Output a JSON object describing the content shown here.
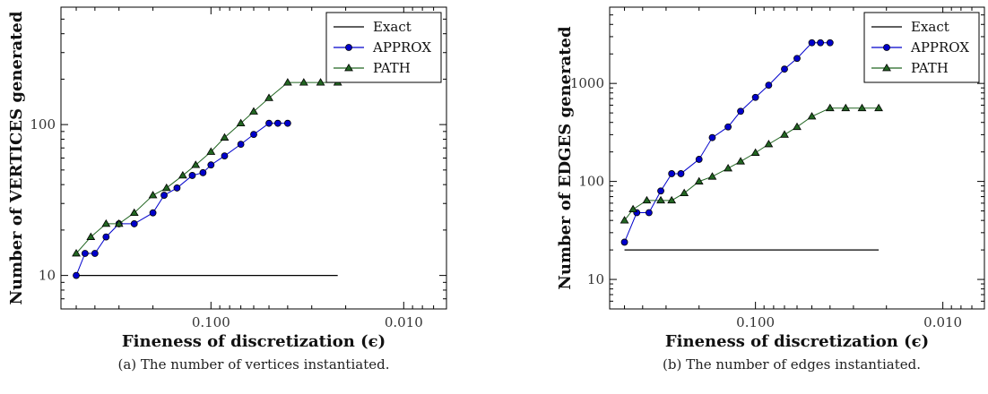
{
  "chart_data": [
    {
      "type": "line",
      "caption": "(a) The number of vertices instantiated.",
      "xlabel": "Fineness of discretization (ϵ)",
      "ylabel": "Number of VERTICES generated",
      "x_scale": "log",
      "x_reversed": true,
      "y_scale": "log",
      "xlim": [
        0.6,
        0.006
      ],
      "ylim": [
        6,
        600
      ],
      "x_ticks": [
        0.1,
        0.01
      ],
      "x_tick_labels": [
        "0.100",
        "0.010"
      ],
      "y_ticks": [
        10,
        100
      ],
      "y_tick_labels": [
        "10",
        "100"
      ],
      "grid": false,
      "legend_position": "top-right",
      "series": [
        {
          "name": "Exact",
          "color": "#000000",
          "marker": "none",
          "x": [
            0.5,
            0.022
          ],
          "y": [
            10,
            10
          ]
        },
        {
          "name": "APPROX",
          "color": "#0000cc",
          "marker": "circle",
          "x": [
            0.5,
            0.45,
            0.4,
            0.35,
            0.3,
            0.25,
            0.2,
            0.175,
            0.15,
            0.125,
            0.11,
            0.1,
            0.085,
            0.07,
            0.06,
            0.05,
            0.045,
            0.04
          ],
          "y": [
            10,
            14,
            14,
            18,
            22,
            22,
            26,
            34,
            38,
            46,
            48,
            54,
            62,
            74,
            86,
            102,
            102,
            102
          ]
        },
        {
          "name": "PATH",
          "color": "#226622",
          "marker": "triangle",
          "x": [
            0.5,
            0.42,
            0.35,
            0.3,
            0.25,
            0.2,
            0.17,
            0.14,
            0.12,
            0.1,
            0.085,
            0.07,
            0.06,
            0.05,
            0.04,
            0.033,
            0.027,
            0.022
          ],
          "y": [
            14,
            18,
            22,
            22,
            26,
            34,
            38,
            46,
            54,
            66,
            82,
            102,
            122,
            150,
            190,
            190,
            190,
            190
          ]
        }
      ]
    },
    {
      "type": "line",
      "caption": "(b) The number of edges instantiated.",
      "xlabel": "Fineness of discretization (ϵ)",
      "ylabel": "Number of EDGES generated",
      "x_scale": "log",
      "x_reversed": true,
      "y_scale": "log",
      "xlim": [
        0.6,
        0.006
      ],
      "ylim": [
        5,
        6000
      ],
      "x_ticks": [
        0.1,
        0.01
      ],
      "x_tick_labels": [
        "0.100",
        "0.010"
      ],
      "y_ticks": [
        10,
        100,
        1000
      ],
      "y_tick_labels": [
        "10",
        "100",
        "1000"
      ],
      "grid": false,
      "legend_position": "top-right",
      "series": [
        {
          "name": "Exact",
          "color": "#000000",
          "marker": "none",
          "x": [
            0.5,
            0.022
          ],
          "y": [
            20,
            20
          ]
        },
        {
          "name": "APPROX",
          "color": "#0000cc",
          "marker": "circle",
          "x": [
            0.5,
            0.43,
            0.37,
            0.32,
            0.28,
            0.25,
            0.2,
            0.17,
            0.14,
            0.12,
            0.1,
            0.085,
            0.07,
            0.06,
            0.05,
            0.045,
            0.04
          ],
          "y": [
            24,
            48,
            48,
            80,
            120,
            120,
            168,
            280,
            360,
            520,
            720,
            960,
            1400,
            1800,
            2600,
            2600,
            2600
          ]
        },
        {
          "name": "PATH",
          "color": "#226622",
          "marker": "triangle",
          "x": [
            0.5,
            0.45,
            0.38,
            0.32,
            0.28,
            0.24,
            0.2,
            0.17,
            0.14,
            0.12,
            0.1,
            0.085,
            0.07,
            0.06,
            0.05,
            0.04,
            0.033,
            0.027,
            0.022
          ],
          "y": [
            40,
            52,
            64,
            64,
            64,
            76,
            100,
            112,
            136,
            160,
            196,
            240,
            300,
            360,
            460,
            560,
            560,
            560,
            560
          ]
        }
      ]
    }
  ]
}
